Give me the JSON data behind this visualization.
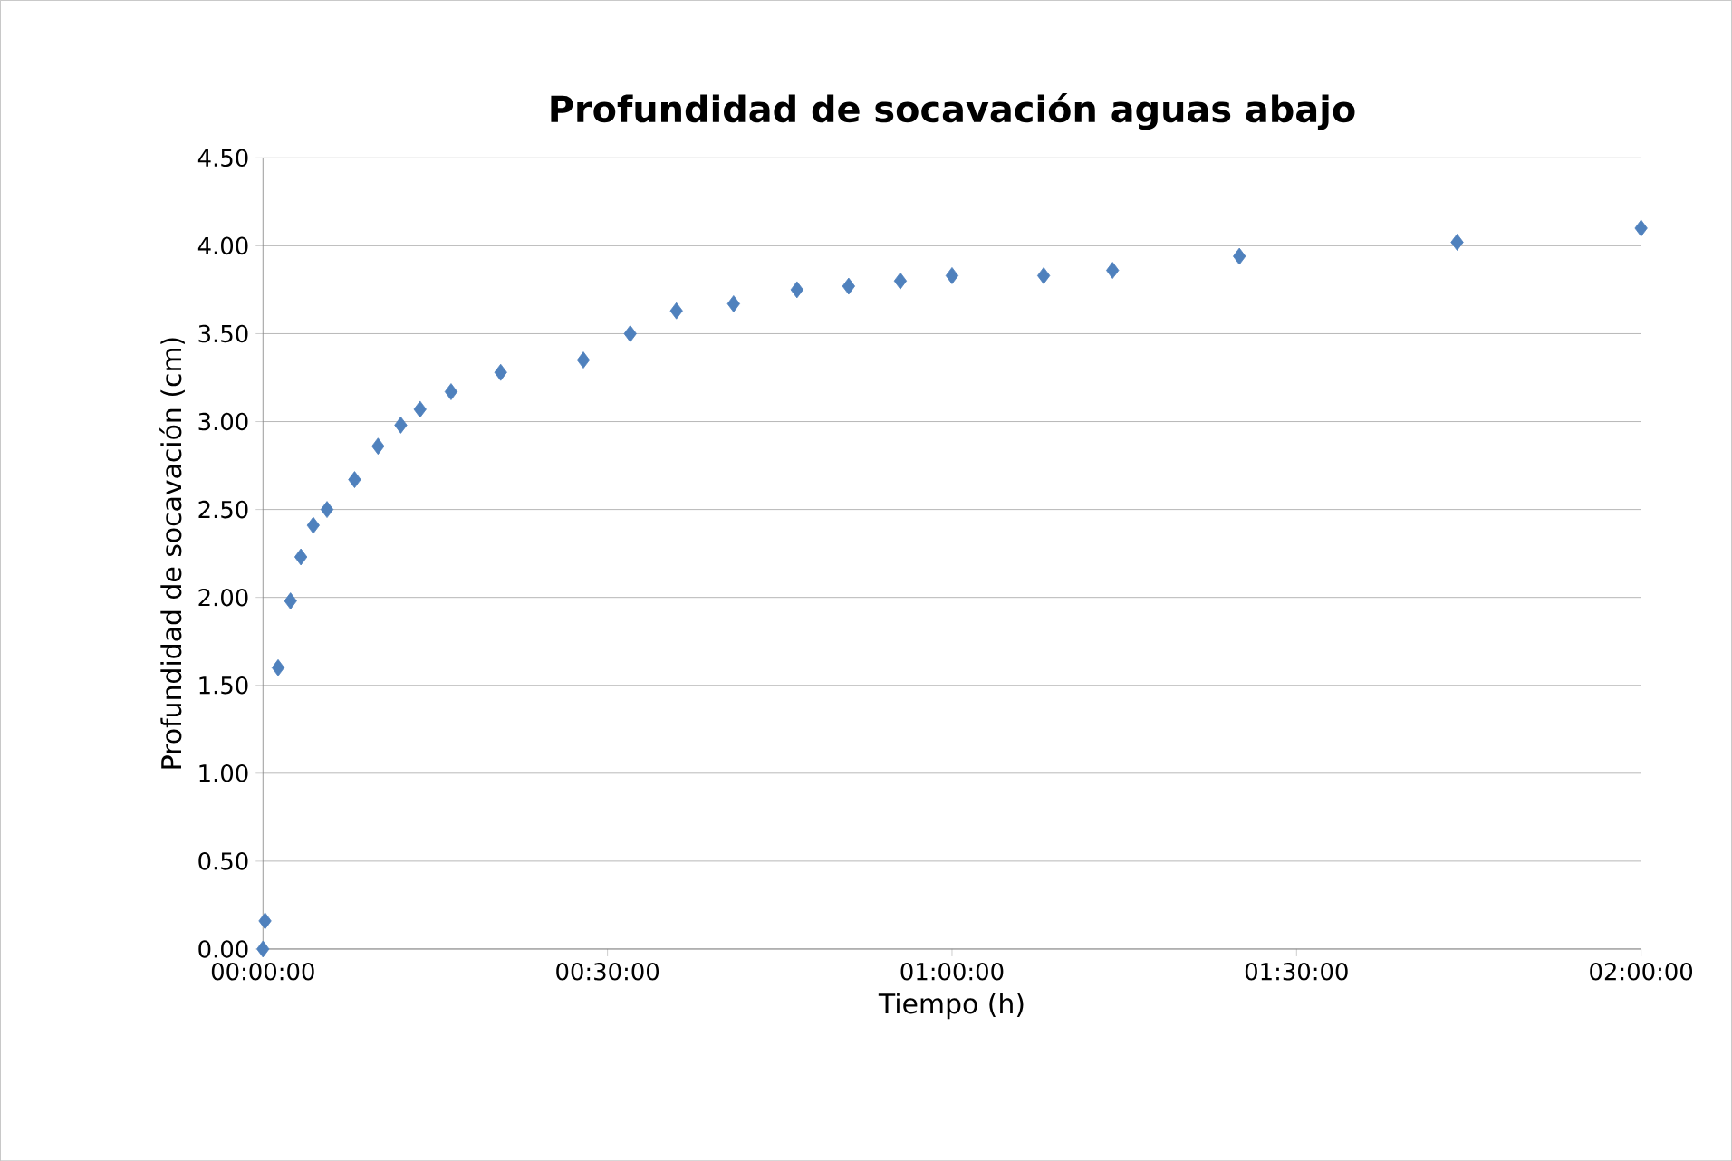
{
  "chart_data": {
    "type": "scatter",
    "title": "Profundidad de socavación aguas abajo",
    "xlabel": "Tiempo (h)",
    "ylabel": "Profundidad de socavación  (cm)",
    "x": [
      0,
      0.003,
      0.022,
      0.04,
      0.055,
      0.073,
      0.093,
      0.133,
      0.167,
      0.2,
      0.228,
      0.273,
      0.345,
      0.465,
      0.533,
      0.6,
      0.683,
      0.775,
      0.85,
      0.925,
      1.0,
      1.133,
      1.233,
      1.417,
      1.733,
      2.0
    ],
    "values": [
      0,
      0.16,
      1.6,
      1.98,
      2.23,
      2.41,
      2.5,
      2.67,
      2.86,
      2.98,
      3.07,
      3.17,
      3.28,
      3.35,
      3.5,
      3.63,
      3.67,
      3.75,
      3.77,
      3.8,
      3.83,
      3.83,
      3.86,
      3.94,
      4.02,
      4.1
    ],
    "color": "#4f81bd",
    "marker": "diamond",
    "grid": "y",
    "xlim": [
      0,
      2
    ],
    "ylim": [
      0,
      4.5
    ],
    "xticks": [
      {
        "value": 0,
        "label": "00:00:00"
      },
      {
        "value": 0.5,
        "label": "00:30:00"
      },
      {
        "value": 1,
        "label": "01:00:00"
      },
      {
        "value": 1.5,
        "label": "01:30:00"
      },
      {
        "value": 2,
        "label": "02:00:00"
      }
    ],
    "yticks": [
      {
        "value": 0,
        "label": "0.00"
      },
      {
        "value": 0.5,
        "label": "0.50"
      },
      {
        "value": 1,
        "label": "1.00"
      },
      {
        "value": 1.5,
        "label": "1.50"
      },
      {
        "value": 2,
        "label": "2.00"
      },
      {
        "value": 2.5,
        "label": "2.50"
      },
      {
        "value": 3,
        "label": "3.00"
      },
      {
        "value": 3.5,
        "label": "3.50"
      },
      {
        "value": 4,
        "label": "4.00"
      },
      {
        "value": 4.5,
        "label": "4.50"
      }
    ]
  }
}
